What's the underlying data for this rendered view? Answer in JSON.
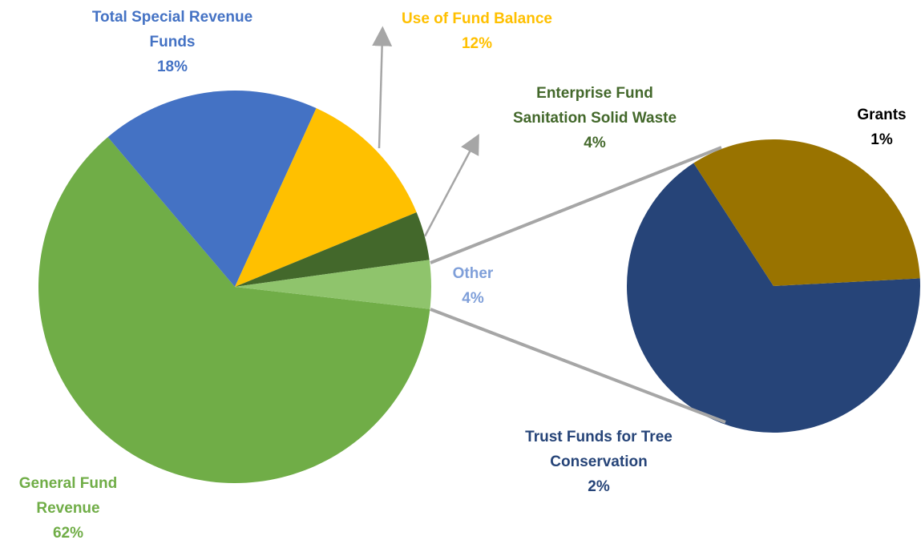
{
  "chart_data": {
    "type": "pie-of-pie",
    "slices": [
      {
        "name": "General Fund Revenue",
        "value": 62,
        "value_label": "62%",
        "color": "#70ad47",
        "label_color": "#70ad47"
      },
      {
        "name": "Total Special Revenue Funds",
        "value": 18,
        "value_label": "18%",
        "color": "#4472c4",
        "label_color": "#4472c4"
      },
      {
        "name": "Use of Fund Balance",
        "value": 12,
        "value_label": "12%",
        "color": "#ffc000",
        "label_color": "#ffc000"
      },
      {
        "name": "Enterprise Fund Sanitation Solid Waste",
        "value": 4,
        "value_label": "4%",
        "color": "#43682b",
        "label_color": "#43682b"
      },
      {
        "name": "Other",
        "value": 4,
        "value_label": "4%",
        "color": "#8fc46c",
        "label_color": "#7f9fd9"
      }
    ],
    "secondary": [
      {
        "name": "Trust Funds for Tree Conservation",
        "value": 2,
        "value_label": "2%",
        "color": "#264478",
        "label_color": "#264478"
      },
      {
        "name": "Grants",
        "value": 1,
        "value_label": "1%",
        "color": "#997300",
        "label_color": "#000000"
      }
    ]
  }
}
